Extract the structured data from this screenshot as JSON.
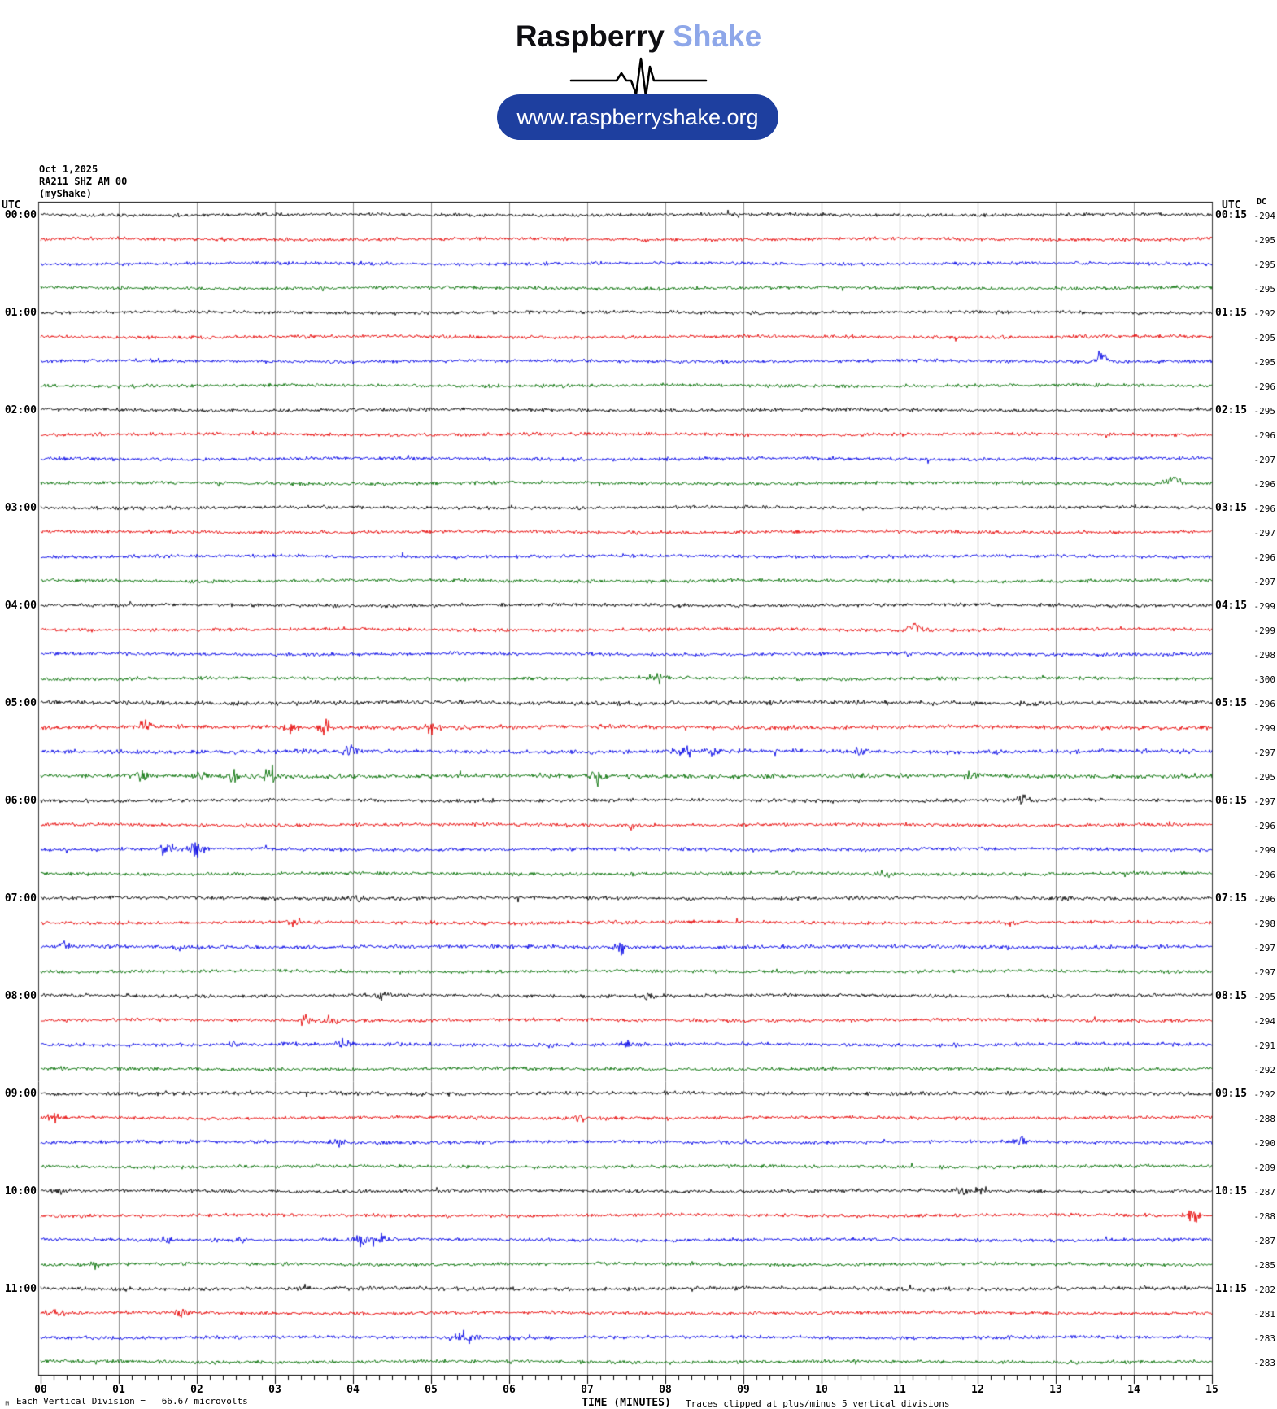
{
  "header": {
    "logo_primary": "Raspberry",
    "logo_secondary": "Shake",
    "url_button": "www.raspberryshake.org",
    "colors": {
      "logo_secondary": "#8ea7e9",
      "button_bg": "#1e3f9f",
      "button_text": "#ffffff"
    }
  },
  "station": {
    "date": "Oct 1,2025",
    "id": "RA211 SHZ AM 00",
    "network": "(myShake)"
  },
  "axis": {
    "utc_header_left": "UTC",
    "utc_header_right": "UTC",
    "dc_header": "DC",
    "minute_labels": [
      "00",
      "01",
      "02",
      "03",
      "04",
      "05",
      "06",
      "07",
      "08",
      "09",
      "10",
      "11",
      "12",
      "13",
      "14",
      "15"
    ],
    "time_axis_label": "TIME (MINUTES)",
    "clip_note": "Traces clipped at plus/minus 5 vertical divisions",
    "division_note": "Each Vertical Division =   66.67 microvolts",
    "corner_glyph": "M"
  },
  "chart_data": {
    "type": "line",
    "subtype": "helicorder",
    "x_range_minutes": [
      0,
      15
    ],
    "minutes_per_row": 15,
    "rows_per_hour": 4,
    "clip_divisions": 5,
    "microvolts_per_division": 66.67,
    "grid_color": "#8c8c8c",
    "frame_color": "#333333",
    "rows": [
      {
        "start": "00:00",
        "end": "00:15",
        "left_label": "00:00",
        "right_label": "00:15",
        "color": "#000000",
        "dc": -294,
        "noise": 1,
        "events": []
      },
      {
        "start": "00:15",
        "end": "00:30",
        "left_label": "",
        "right_label": "",
        "color": "#e60000",
        "dc": -295,
        "noise": 1,
        "events": []
      },
      {
        "start": "00:30",
        "end": "00:45",
        "left_label": "",
        "right_label": "",
        "color": "#0000e6",
        "dc": -295,
        "noise": 1,
        "events": []
      },
      {
        "start": "00:45",
        "end": "01:00",
        "left_label": "",
        "right_label": "",
        "color": "#006e00",
        "dc": -295,
        "noise": 1,
        "events": []
      },
      {
        "start": "01:00",
        "end": "01:15",
        "left_label": "01:00",
        "right_label": "01:15",
        "color": "#000000",
        "dc": -292,
        "noise": 1,
        "events": []
      },
      {
        "start": "01:15",
        "end": "01:30",
        "left_label": "",
        "right_label": "",
        "color": "#e60000",
        "dc": -295,
        "noise": 1,
        "events": []
      },
      {
        "start": "01:30",
        "end": "01:45",
        "left_label": "",
        "right_label": "",
        "color": "#0000e6",
        "dc": -295,
        "noise": 1,
        "events": [
          {
            "m": 13.6,
            "a": 3,
            "dir": -1
          }
        ]
      },
      {
        "start": "01:45",
        "end": "02:00",
        "left_label": "",
        "right_label": "",
        "color": "#006e00",
        "dc": -296,
        "noise": 1,
        "events": []
      },
      {
        "start": "02:00",
        "end": "02:15",
        "left_label": "02:00",
        "right_label": "02:15",
        "color": "#000000",
        "dc": -295,
        "noise": 1,
        "events": []
      },
      {
        "start": "02:15",
        "end": "02:30",
        "left_label": "",
        "right_label": "",
        "color": "#e60000",
        "dc": -296,
        "noise": 1,
        "events": []
      },
      {
        "start": "02:30",
        "end": "02:45",
        "left_label": "",
        "right_label": "",
        "color": "#0000e6",
        "dc": -297,
        "noise": 1,
        "events": []
      },
      {
        "start": "02:45",
        "end": "03:00",
        "left_label": "",
        "right_label": "",
        "color": "#006e00",
        "dc": -296,
        "noise": 1,
        "events": [
          {
            "m": 14.5,
            "a": 2.2,
            "dir": -1
          }
        ]
      },
      {
        "start": "03:00",
        "end": "03:15",
        "left_label": "03:00",
        "right_label": "03:15",
        "color": "#000000",
        "dc": -296,
        "noise": 1,
        "events": []
      },
      {
        "start": "03:15",
        "end": "03:30",
        "left_label": "",
        "right_label": "",
        "color": "#e60000",
        "dc": -297,
        "noise": 1,
        "events": []
      },
      {
        "start": "03:30",
        "end": "03:45",
        "left_label": "",
        "right_label": "",
        "color": "#0000e6",
        "dc": -296,
        "noise": 1,
        "events": []
      },
      {
        "start": "03:45",
        "end": "04:00",
        "left_label": "",
        "right_label": "",
        "color": "#006e00",
        "dc": -297,
        "noise": 1,
        "events": []
      },
      {
        "start": "04:00",
        "end": "04:15",
        "left_label": "04:00",
        "right_label": "04:15",
        "color": "#000000",
        "dc": -299,
        "noise": 1,
        "events": []
      },
      {
        "start": "04:15",
        "end": "04:30",
        "left_label": "",
        "right_label": "",
        "color": "#e60000",
        "dc": -299,
        "noise": 1,
        "events": [
          {
            "m": 11.2,
            "a": 2,
            "dir": -1
          }
        ]
      },
      {
        "start": "04:30",
        "end": "04:45",
        "left_label": "",
        "right_label": "",
        "color": "#0000e6",
        "dc": -298,
        "noise": 1,
        "events": []
      },
      {
        "start": "04:45",
        "end": "05:00",
        "left_label": "",
        "right_label": "",
        "color": "#006e00",
        "dc": -300,
        "noise": 1,
        "events": [
          {
            "m": 7.9,
            "a": 2.5
          }
        ]
      },
      {
        "start": "05:00",
        "end": "05:15",
        "left_label": "05:00",
        "right_label": "05:15",
        "color": "#000000",
        "dc": -296,
        "noise": 1.25,
        "events": []
      },
      {
        "start": "05:15",
        "end": "05:30",
        "left_label": "",
        "right_label": "",
        "color": "#e60000",
        "dc": -299,
        "noise": 1.2,
        "events": [
          {
            "m": 1.35,
            "a": 2.2
          },
          {
            "m": 3.2,
            "a": 2
          },
          {
            "m": 3.65,
            "a": 3
          },
          {
            "m": 5.0,
            "a": 2.2
          }
        ]
      },
      {
        "start": "05:30",
        "end": "05:45",
        "left_label": "",
        "right_label": "",
        "color": "#0000e6",
        "dc": -297,
        "noise": 1.2,
        "events": [
          {
            "m": 3.95,
            "a": 2
          },
          {
            "m": 8.2,
            "a": 2.5
          },
          {
            "m": 8.6,
            "a": 2
          },
          {
            "m": 10.5,
            "a": 1.5
          }
        ]
      },
      {
        "start": "05:45",
        "end": "06:00",
        "left_label": "",
        "right_label": "",
        "color": "#006e00",
        "dc": -295,
        "noise": 1.3,
        "events": [
          {
            "m": 1.3,
            "a": 2
          },
          {
            "m": 2.0,
            "a": 2.2
          },
          {
            "m": 2.45,
            "a": 2.5
          },
          {
            "m": 2.9,
            "a": 2.6
          },
          {
            "m": 7.15,
            "a": 2.5
          },
          {
            "m": 11.9,
            "a": 1.5
          }
        ]
      },
      {
        "start": "06:00",
        "end": "06:15",
        "left_label": "06:00",
        "right_label": "06:15",
        "color": "#000000",
        "dc": -297,
        "noise": 1,
        "events": [
          {
            "m": 12.55,
            "a": 2.5
          }
        ]
      },
      {
        "start": "06:15",
        "end": "06:30",
        "left_label": "",
        "right_label": "",
        "color": "#e60000",
        "dc": -296,
        "noise": 1,
        "events": [
          {
            "m": 7.55,
            "a": 2
          }
        ]
      },
      {
        "start": "06:30",
        "end": "06:45",
        "left_label": "",
        "right_label": "",
        "color": "#0000e6",
        "dc": -299,
        "noise": 1,
        "events": [
          {
            "m": 1.65,
            "a": 3
          },
          {
            "m": 2.0,
            "a": 4
          }
        ]
      },
      {
        "start": "06:45",
        "end": "07:00",
        "left_label": "",
        "right_label": "",
        "color": "#006e00",
        "dc": -296,
        "noise": 1,
        "events": [
          {
            "m": 10.8,
            "a": 1.5
          }
        ]
      },
      {
        "start": "07:00",
        "end": "07:15",
        "left_label": "07:00",
        "right_label": "07:15",
        "color": "#000000",
        "dc": -296,
        "noise": 1,
        "events": [
          {
            "m": 4.05,
            "a": 2
          },
          {
            "m": 13.1,
            "a": 1.5
          }
        ]
      },
      {
        "start": "07:15",
        "end": "07:30",
        "left_label": "",
        "right_label": "",
        "color": "#e60000",
        "dc": -298,
        "noise": 1,
        "events": [
          {
            "m": 3.25,
            "a": 2
          },
          {
            "m": 12.45,
            "a": 2
          }
        ]
      },
      {
        "start": "07:30",
        "end": "07:45",
        "left_label": "",
        "right_label": "",
        "color": "#0000e6",
        "dc": -297,
        "noise": 1.1,
        "events": [
          {
            "m": 0.3,
            "a": 2
          },
          {
            "m": 1.75,
            "a": 2
          },
          {
            "m": 7.45,
            "a": 2.3
          }
        ]
      },
      {
        "start": "07:45",
        "end": "08:00",
        "left_label": "",
        "right_label": "",
        "color": "#006e00",
        "dc": -297,
        "noise": 1,
        "events": []
      },
      {
        "start": "08:00",
        "end": "08:15",
        "left_label": "08:00",
        "right_label": "08:15",
        "color": "#000000",
        "dc": -295,
        "noise": 1,
        "events": [
          {
            "m": 4.35,
            "a": 1.5
          },
          {
            "m": 7.75,
            "a": 1.5
          }
        ]
      },
      {
        "start": "08:15",
        "end": "08:30",
        "left_label": "",
        "right_label": "",
        "color": "#e60000",
        "dc": -294,
        "noise": 1,
        "events": [
          {
            "m": 3.4,
            "a": 2.5
          },
          {
            "m": 3.7,
            "a": 3
          }
        ]
      },
      {
        "start": "08:30",
        "end": "08:45",
        "left_label": "",
        "right_label": "",
        "color": "#0000e6",
        "dc": -291,
        "noise": 1,
        "events": [
          {
            "m": 2.45,
            "a": 1.6
          },
          {
            "m": 3.9,
            "a": 2
          },
          {
            "m": 7.5,
            "a": 2.2
          }
        ]
      },
      {
        "start": "08:45",
        "end": "09:00",
        "left_label": "",
        "right_label": "",
        "color": "#006e00",
        "dc": -292,
        "noise": 1,
        "events": []
      },
      {
        "start": "09:00",
        "end": "09:15",
        "left_label": "09:00",
        "right_label": "09:15",
        "color": "#000000",
        "dc": -292,
        "noise": 1.15,
        "events": []
      },
      {
        "start": "09:15",
        "end": "09:30",
        "left_label": "",
        "right_label": "",
        "color": "#e60000",
        "dc": -288,
        "noise": 1,
        "events": [
          {
            "m": 0.15,
            "a": 2.5
          },
          {
            "m": 6.9,
            "a": 1.5
          }
        ]
      },
      {
        "start": "09:30",
        "end": "09:45",
        "left_label": "",
        "right_label": "",
        "color": "#0000e6",
        "dc": -290,
        "noise": 1,
        "events": [
          {
            "m": 3.8,
            "a": 2
          },
          {
            "m": 12.55,
            "a": 3.5
          }
        ]
      },
      {
        "start": "09:45",
        "end": "10:00",
        "left_label": "",
        "right_label": "",
        "color": "#006e00",
        "dc": -289,
        "noise": 1,
        "events": []
      },
      {
        "start": "10:00",
        "end": "10:15",
        "left_label": "10:00",
        "right_label": "10:15",
        "color": "#000000",
        "dc": -287,
        "noise": 1,
        "events": [
          {
            "m": 0.25,
            "a": 2
          },
          {
            "m": 11.8,
            "a": 2.5
          },
          {
            "m": 12.05,
            "a": 2
          }
        ]
      },
      {
        "start": "10:15",
        "end": "10:30",
        "left_label": "",
        "right_label": "",
        "color": "#e60000",
        "dc": -288,
        "noise": 1,
        "events": [
          {
            "m": 14.75,
            "a": 3
          }
        ]
      },
      {
        "start": "10:30",
        "end": "10:45",
        "left_label": "",
        "right_label": "",
        "color": "#0000e6",
        "dc": -287,
        "noise": 1,
        "events": [
          {
            "m": 1.6,
            "a": 2
          },
          {
            "m": 2.6,
            "a": 1.5
          },
          {
            "m": 4.1,
            "a": 2.5
          },
          {
            "m": 4.35,
            "a": 2.5
          }
        ]
      },
      {
        "start": "10:45",
        "end": "11:00",
        "left_label": "",
        "right_label": "",
        "color": "#006e00",
        "dc": -285,
        "noise": 1,
        "events": [
          {
            "m": 0.7,
            "a": 1.5
          }
        ]
      },
      {
        "start": "11:00",
        "end": "11:15",
        "left_label": "11:00",
        "right_label": "11:15",
        "color": "#000000",
        "dc": -282,
        "noise": 1.15,
        "events": []
      },
      {
        "start": "11:15",
        "end": "11:30",
        "left_label": "",
        "right_label": "",
        "color": "#e60000",
        "dc": -281,
        "noise": 1,
        "events": [
          {
            "m": 0.2,
            "a": 2
          },
          {
            "m": 1.85,
            "a": 2.5
          }
        ]
      },
      {
        "start": "11:30",
        "end": "11:45",
        "left_label": "",
        "right_label": "",
        "color": "#0000e6",
        "dc": -283,
        "noise": 1,
        "events": [
          {
            "m": 5.35,
            "a": 3
          },
          {
            "m": 5.55,
            "a": 2.5
          }
        ]
      },
      {
        "start": "11:45",
        "end": "12:00",
        "left_label": "",
        "right_label": "",
        "color": "#006e00",
        "dc": -283,
        "noise": 1,
        "events": []
      }
    ]
  }
}
